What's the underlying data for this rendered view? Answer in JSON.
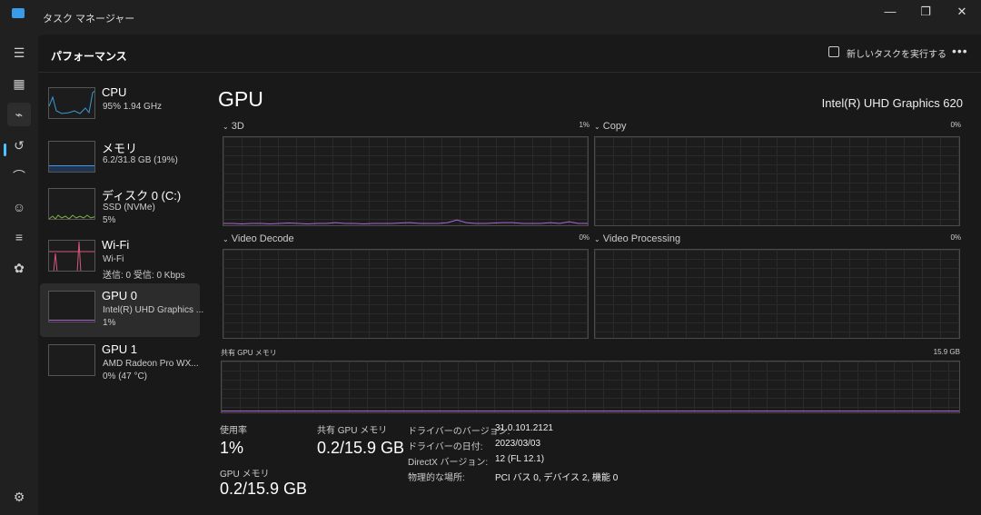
{
  "window": {
    "title": "タスク マネージャー",
    "minimize": "—",
    "maximize": "❐",
    "close": "✕"
  },
  "rail": {
    "items": [
      "menu-icon",
      "processes-icon",
      "performance-icon",
      "app-history-icon",
      "startup-icon",
      "users-icon",
      "details-icon",
      "services-icon"
    ],
    "settings": "settings-icon"
  },
  "header": {
    "title": "パフォーマンス",
    "run_task": "新しいタスクを実行する",
    "more": "•••"
  },
  "sidebar": {
    "items": [
      {
        "name": "CPU",
        "sub1": "95%  1.94 GHz",
        "sub2": "",
        "color": "#3a9bd5"
      },
      {
        "name": "メモリ",
        "sub1": "6.2/31.8 GB (19%)",
        "sub2": "",
        "color": "#4a90e2"
      },
      {
        "name": "ディスク 0 (C:)",
        "sub1": "SSD (NVMe)",
        "sub2": "5%",
        "color": "#7cb342"
      },
      {
        "name": "Wi-Fi",
        "sub1": "Wi-Fi",
        "sub2": "送信: 0  受信: 0 Kbps",
        "color": "#d4567a"
      },
      {
        "name": "GPU 0",
        "sub1": "Intel(R) UHD Graphics ...",
        "sub2": "1%",
        "color": "#b065d6"
      },
      {
        "name": "GPU 1",
        "sub1": "AMD Radeon Pro WX...",
        "sub2": "0%  (47 °C)",
        "color": "#b065d6"
      }
    ]
  },
  "main": {
    "title": "GPU",
    "model": "Intel(R) UHD Graphics 620",
    "engines": [
      {
        "label": "3D",
        "pct": "1%"
      },
      {
        "label": "Copy",
        "pct": "0%"
      },
      {
        "label": "Video Decode",
        "pct": "0%"
      },
      {
        "label": "Video Processing",
        "pct": "0%"
      }
    ],
    "shared_mem": {
      "label": "共有 GPU メモリ",
      "max": "15.9 GB"
    },
    "history_3d": [
      1,
      1,
      0.5,
      1,
      1,
      0.5,
      1,
      1.5,
      1,
      0.5,
      1,
      1,
      2,
      1,
      1,
      0.5,
      1,
      1,
      1,
      1.5,
      2,
      1,
      1,
      1,
      2,
      5,
      2,
      1,
      1,
      1.5,
      2,
      2,
      1,
      1,
      1,
      2,
      1,
      3,
      1,
      1
    ],
    "accent": "#b065d6",
    "stats": {
      "usage_label": "使用率",
      "usage": "1%",
      "shared_label": "共有 GPU メモリ",
      "shared": "0.2/15.9 GB",
      "gpumem_label": "GPU メモリ",
      "gpumem": "0.2/15.9 GB"
    },
    "info": [
      {
        "label": "ドライバーのバージョン:",
        "value": "31.0.101.2121"
      },
      {
        "label": "ドライバーの日付:",
        "value": "2023/03/03"
      },
      {
        "label": "DirectX バージョン:",
        "value": "12 (FL 12.1)"
      },
      {
        "label": "物理的な場所:",
        "value": "PCI バス 0, デバイス 2, 機能 0"
      }
    ]
  }
}
